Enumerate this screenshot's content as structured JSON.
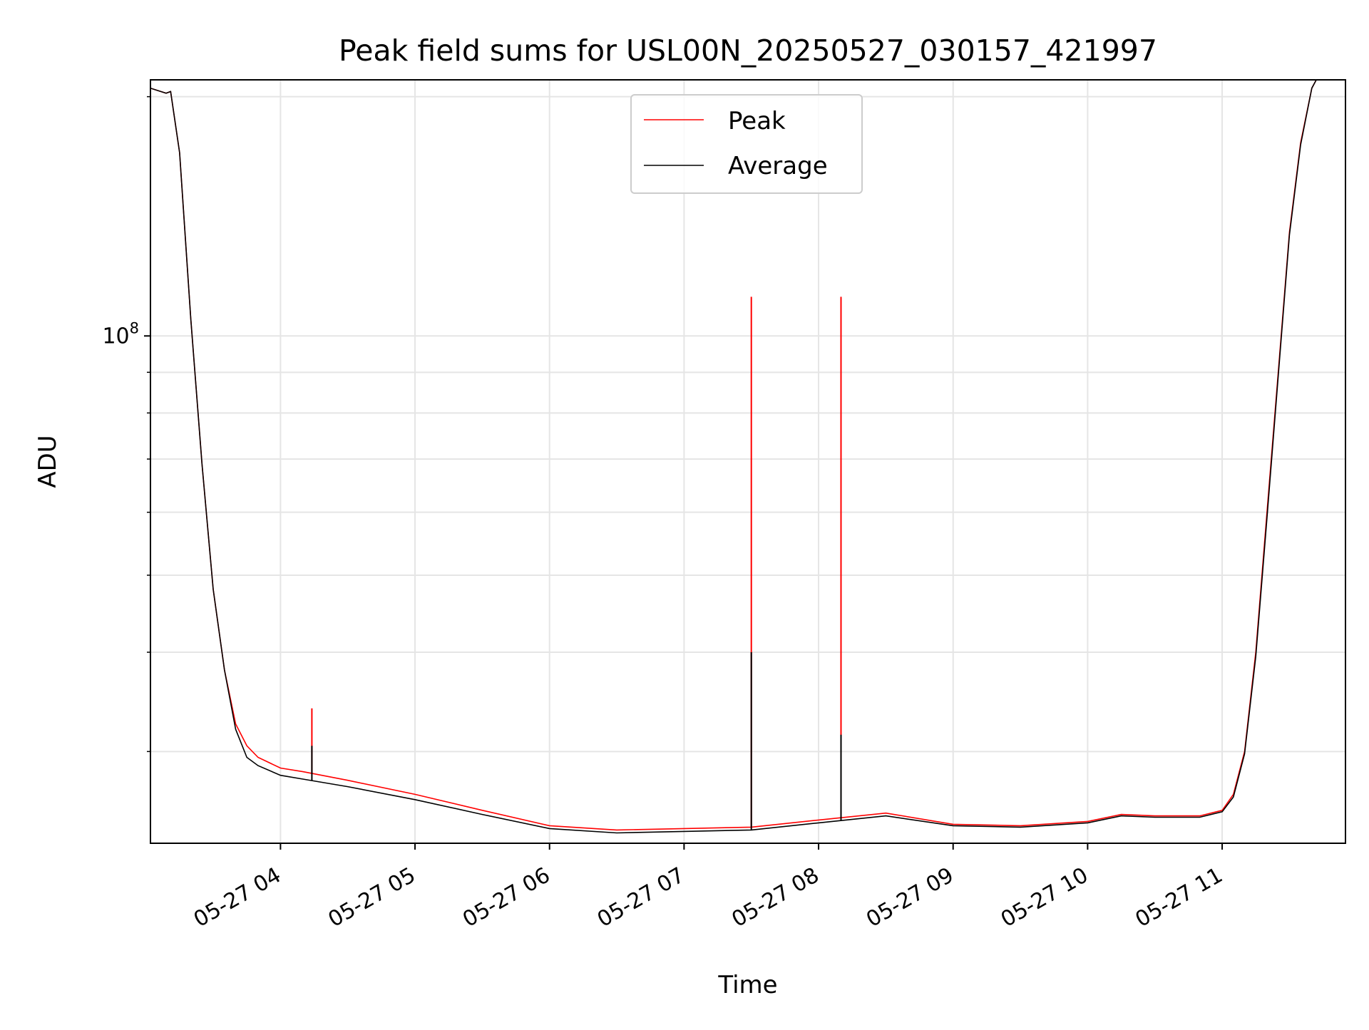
{
  "chart_data": {
    "type": "line",
    "title": "Peak field sums for USL00N_20250527_030157_421997",
    "xlabel": "Time",
    "ylabel": "ADU",
    "yscale": "log",
    "ylim": [
      23000000,
      210000000
    ],
    "xlim": [
      "2025-05-27T03:02",
      "2025-05-27T11:55"
    ],
    "grid": true,
    "legend_position": "top-center",
    "x_ticks": [
      {
        "t": "2025-05-27T04:00",
        "label": "05-27 04"
      },
      {
        "t": "2025-05-27T05:00",
        "label": "05-27 05"
      },
      {
        "t": "2025-05-27T06:00",
        "label": "05-27 06"
      },
      {
        "t": "2025-05-27T07:00",
        "label": "05-27 07"
      },
      {
        "t": "2025-05-27T08:00",
        "label": "05-27 08"
      },
      {
        "t": "2025-05-27T09:00",
        "label": "05-27 09"
      },
      {
        "t": "2025-05-27T10:00",
        "label": "05-27 10"
      },
      {
        "t": "2025-05-27T11:00",
        "label": "05-27 11"
      }
    ],
    "y_major_ticks": [
      {
        "value": 100000000,
        "base": "10",
        "exp": "8"
      }
    ],
    "y_minor_ticks": [
      30000000,
      40000000,
      50000000,
      60000000,
      70000000,
      80000000,
      90000000,
      200000000
    ],
    "series": [
      {
        "name": "Peak",
        "color": "#ff0000",
        "x": [
          "2025-05-27T03:02",
          "2025-05-27T03:09",
          "2025-05-27T03:11",
          "2025-05-27T03:15",
          "2025-05-27T03:20",
          "2025-05-27T03:25",
          "2025-05-27T03:30",
          "2025-05-27T03:35",
          "2025-05-27T03:40",
          "2025-05-27T03:45",
          "2025-05-27T03:50",
          "2025-05-27T04:00",
          "2025-05-27T04:10",
          "2025-05-27T04:30",
          "2025-05-27T05:00",
          "2025-05-27T05:30",
          "2025-05-27T06:00",
          "2025-05-27T06:30",
          "2025-05-27T07:00",
          "2025-05-27T07:30",
          "2025-05-27T08:00",
          "2025-05-27T08:30",
          "2025-05-27T09:00",
          "2025-05-27T09:30",
          "2025-05-27T10:00",
          "2025-05-27T10:15",
          "2025-05-27T10:30",
          "2025-05-27T10:50",
          "2025-05-27T11:00",
          "2025-05-27T11:05",
          "2025-05-27T11:10",
          "2025-05-27T11:15",
          "2025-05-27T11:20",
          "2025-05-27T11:25",
          "2025-05-27T11:30",
          "2025-05-27T11:35",
          "2025-05-27T11:40",
          "2025-05-27T11:42",
          "2025-05-27T11:44",
          "2025-05-27T11:50",
          "2025-05-27T11:55"
        ],
        "y": [
          205000000,
          202000000,
          203000000,
          170000000,
          105000000,
          69000000,
          48000000,
          38000000,
          32500000,
          30500000,
          29500000,
          28600000,
          28300000,
          27600000,
          26500000,
          25300000,
          24200000,
          23900000,
          24000000,
          24100000,
          24600000,
          25100000,
          24300000,
          24200000,
          24500000,
          25000000,
          24900000,
          24900000,
          25300000,
          26500000,
          30000000,
          40000000,
          60000000,
          90000000,
          135000000,
          175000000,
          205000000,
          210000000,
          210000000,
          210000000,
          210000000
        ],
        "spikes": [
          {
            "t": "2025-05-27T04:14",
            "y": 34000000
          },
          {
            "t": "2025-05-27T07:30",
            "y": 112000000
          },
          {
            "t": "2025-05-27T08:10",
            "y": 112000000
          }
        ]
      },
      {
        "name": "Average",
        "color": "#000000",
        "x": [
          "2025-05-27T03:02",
          "2025-05-27T03:09",
          "2025-05-27T03:11",
          "2025-05-27T03:15",
          "2025-05-27T03:20",
          "2025-05-27T03:25",
          "2025-05-27T03:30",
          "2025-05-27T03:35",
          "2025-05-27T03:40",
          "2025-05-27T03:45",
          "2025-05-27T03:50",
          "2025-05-27T04:00",
          "2025-05-27T04:10",
          "2025-05-27T04:30",
          "2025-05-27T05:00",
          "2025-05-27T05:30",
          "2025-05-27T06:00",
          "2025-05-27T06:30",
          "2025-05-27T07:00",
          "2025-05-27T07:30",
          "2025-05-27T08:00",
          "2025-05-27T08:30",
          "2025-05-27T09:00",
          "2025-05-27T09:30",
          "2025-05-27T10:00",
          "2025-05-27T10:15",
          "2025-05-27T10:30",
          "2025-05-27T10:50",
          "2025-05-27T11:00",
          "2025-05-27T11:05",
          "2025-05-27T11:10",
          "2025-05-27T11:15",
          "2025-05-27T11:20",
          "2025-05-27T11:25",
          "2025-05-27T11:30",
          "2025-05-27T11:35",
          "2025-05-27T11:40",
          "2025-05-27T11:42",
          "2025-05-27T11:44",
          "2025-05-27T11:50",
          "2025-05-27T11:55"
        ],
        "y": [
          205000000,
          202000000,
          203000000,
          170000000,
          105000000,
          69000000,
          48000000,
          38000000,
          32000000,
          29500000,
          28800000,
          28000000,
          27700000,
          27100000,
          26100000,
          25000000,
          24000000,
          23700000,
          23800000,
          23900000,
          24400000,
          24900000,
          24200000,
          24100000,
          24400000,
          24900000,
          24800000,
          24800000,
          25200000,
          26300000,
          29800000,
          39500000,
          59000000,
          89000000,
          134000000,
          174000000,
          205000000,
          210000000,
          210000000,
          210000000,
          210000000
        ],
        "spikes": [
          {
            "t": "2025-05-27T04:14",
            "y": 30500000
          },
          {
            "t": "2025-05-27T07:30",
            "y": 40000000
          },
          {
            "t": "2025-05-27T08:10",
            "y": 31500000
          }
        ]
      }
    ]
  }
}
